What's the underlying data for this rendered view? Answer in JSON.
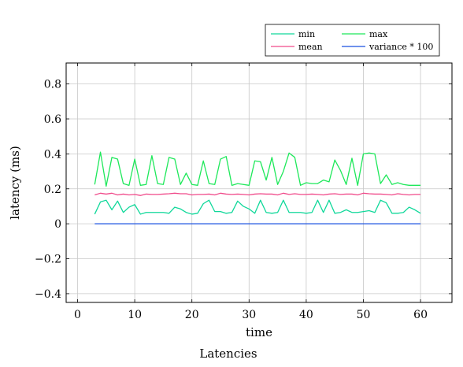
{
  "chart_data": {
    "type": "line",
    "title": "",
    "caption": "Latencies",
    "xlabel": "time",
    "ylabel": "latency (ms)",
    "xlim": [
      -2,
      65.5
    ],
    "ylim": [
      -0.45,
      0.92
    ],
    "x_ticks": [
      0,
      10,
      20,
      30,
      40,
      50,
      60
    ],
    "y_ticks": [
      -0.4,
      -0.2,
      0,
      0.2,
      0.4,
      0.6,
      0.8
    ],
    "x_tick_labels": [
      "0",
      "10",
      "20",
      "30",
      "40",
      "50",
      "60"
    ],
    "y_tick_labels": [
      "−0.4",
      "−0.2",
      "0",
      "0.2",
      "0.4",
      "0.6",
      "0.8"
    ],
    "grid": true,
    "legend_position": "top-right-outside",
    "x": [
      3,
      4,
      5,
      6,
      7,
      8,
      9,
      10,
      11,
      12,
      13,
      14,
      15,
      16,
      17,
      18,
      19,
      20,
      21,
      22,
      23,
      24,
      25,
      26,
      27,
      28,
      29,
      30,
      31,
      32,
      33,
      34,
      35,
      36,
      37,
      38,
      39,
      40,
      41,
      42,
      43,
      44,
      45,
      46,
      47,
      48,
      49,
      50,
      51,
      52,
      53,
      54,
      55,
      56,
      57,
      58,
      59,
      60
    ],
    "series": [
      {
        "name": "min",
        "color": "#10d89a",
        "values": [
          0.055,
          0.125,
          0.135,
          0.08,
          0.13,
          0.065,
          0.095,
          0.11,
          0.055,
          0.065,
          0.065,
          0.065,
          0.065,
          0.06,
          0.095,
          0.085,
          0.065,
          0.055,
          0.06,
          0.115,
          0.135,
          0.07,
          0.07,
          0.06,
          0.065,
          0.13,
          0.1,
          0.085,
          0.06,
          0.135,
          0.065,
          0.06,
          0.065,
          0.135,
          0.065,
          0.065,
          0.065,
          0.06,
          0.065,
          0.135,
          0.065,
          0.135,
          0.06,
          0.065,
          0.08,
          0.065,
          0.065,
          0.07,
          0.075,
          0.065,
          0.135,
          0.12,
          0.06,
          0.06,
          0.065,
          0.095,
          0.08,
          0.06
        ]
      },
      {
        "name": "max",
        "color": "#1ee85a",
        "values": [
          0.225,
          0.41,
          0.215,
          0.38,
          0.37,
          0.23,
          0.22,
          0.37,
          0.22,
          0.225,
          0.39,
          0.23,
          0.225,
          0.38,
          0.37,
          0.225,
          0.29,
          0.225,
          0.22,
          0.36,
          0.23,
          0.225,
          0.37,
          0.385,
          0.22,
          0.23,
          0.225,
          0.22,
          0.36,
          0.355,
          0.25,
          0.38,
          0.225,
          0.3,
          0.405,
          0.38,
          0.22,
          0.235,
          0.23,
          0.23,
          0.25,
          0.24,
          0.365,
          0.305,
          0.225,
          0.375,
          0.22,
          0.4,
          0.405,
          0.4,
          0.23,
          0.28,
          0.225,
          0.235,
          0.225,
          0.22,
          0.22,
          0.22
        ]
      },
      {
        "name": "mean",
        "color": "#f04a8a",
        "values": [
          0.165,
          0.175,
          0.17,
          0.175,
          0.165,
          0.17,
          0.165,
          0.168,
          0.162,
          0.17,
          0.168,
          0.168,
          0.17,
          0.172,
          0.175,
          0.172,
          0.172,
          0.165,
          0.168,
          0.168,
          0.17,
          0.165,
          0.175,
          0.17,
          0.168,
          0.17,
          0.168,
          0.165,
          0.17,
          0.172,
          0.17,
          0.17,
          0.165,
          0.175,
          0.168,
          0.172,
          0.168,
          0.168,
          0.17,
          0.168,
          0.165,
          0.17,
          0.172,
          0.168,
          0.17,
          0.17,
          0.165,
          0.175,
          0.172,
          0.17,
          0.17,
          0.168,
          0.165,
          0.172,
          0.168,
          0.165,
          0.168,
          0.168
        ]
      },
      {
        "name": "variance * 100",
        "color": "#1a50e0",
        "values": [
          0,
          0,
          0,
          0,
          0,
          0,
          0,
          0,
          0,
          0,
          0,
          0,
          0,
          0,
          0,
          0,
          0,
          0,
          0,
          0,
          0,
          0,
          0,
          0,
          0,
          0,
          0,
          0,
          0,
          0,
          0,
          0,
          0,
          0,
          0,
          0,
          0,
          0,
          0,
          0,
          0,
          0,
          0,
          0,
          0,
          0,
          0,
          0,
          0,
          0,
          0,
          0,
          0,
          0,
          0,
          0,
          0,
          0
        ]
      }
    ]
  }
}
